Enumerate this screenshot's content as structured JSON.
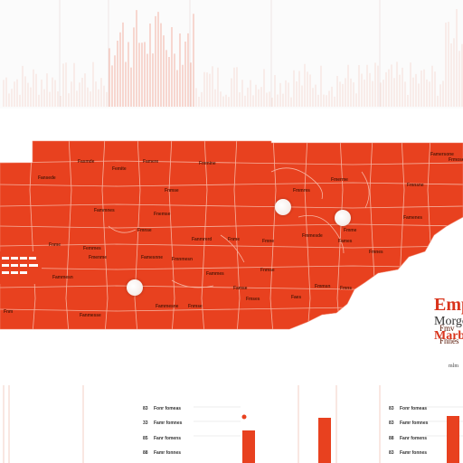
{
  "brand_color": "#e8411f",
  "border_color": "#f6b29f",
  "marker_color": "#ffffff",
  "map": {
    "county_labels": [
      {
        "text": "Fasmde"
      },
      {
        "text": "Fansede"
      },
      {
        "text": "Femite"
      },
      {
        "text": "Famere"
      },
      {
        "text": "Fmmine"
      },
      {
        "text": "Famersone"
      },
      {
        "text": "Frmose"
      },
      {
        "text": "Fammnes"
      },
      {
        "text": "Fnmse"
      },
      {
        "text": "Fnemse"
      },
      {
        "text": "Fmmres"
      },
      {
        "text": "Fmerme"
      },
      {
        "text": "Fmnsne"
      },
      {
        "text": "Fnme"
      },
      {
        "text": "Femmes"
      },
      {
        "text": "Fmnse"
      },
      {
        "text": "Fanmrerd"
      },
      {
        "text": "Fnme"
      },
      {
        "text": "Fmne"
      },
      {
        "text": "Fmmesde"
      },
      {
        "text": "Fames"
      },
      {
        "text": "Famenes"
      },
      {
        "text": "Fmenme"
      },
      {
        "text": "Famesnne"
      },
      {
        "text": "Fmnmesn"
      },
      {
        "text": "Fammes"
      },
      {
        "text": "Fnmse"
      },
      {
        "text": "Faes"
      },
      {
        "text": "Fammesn"
      },
      {
        "text": "Fammesne"
      },
      {
        "text": "Fnmse"
      },
      {
        "text": "Famse"
      },
      {
        "text": "Fmses"
      },
      {
        "text": "Fmmsn"
      },
      {
        "text": "Fmns"
      },
      {
        "text": "Fmnes"
      },
      {
        "text": "Fnm"
      },
      {
        "text": "Fanmesse"
      },
      {
        "text": "Fmme"
      }
    ],
    "note_lines": [
      "Fmv",
      "Fnnes"
    ]
  },
  "side_text": {
    "title": "Emp",
    "subtitle": "Morgc",
    "accent": "Marb",
    "small_mark": "mlm"
  },
  "bottom_rows": [
    {
      "idx": "83",
      "label": "Fonr fomeas"
    },
    {
      "idx": "33",
      "label": "Famr fomnes"
    },
    {
      "idx": "85",
      "label": "Fanr fomens"
    },
    {
      "idx": "88",
      "label": "Famr fonnes"
    }
  ],
  "bottom_rows_right": [
    {
      "idx": "83",
      "label": "Fonr fomeas"
    },
    {
      "idx": "83",
      "label": "Famr fomnes"
    },
    {
      "idx": "88",
      "label": "Fanr fomens"
    },
    {
      "idx": "83",
      "label": "Famr fonnes"
    }
  ]
}
